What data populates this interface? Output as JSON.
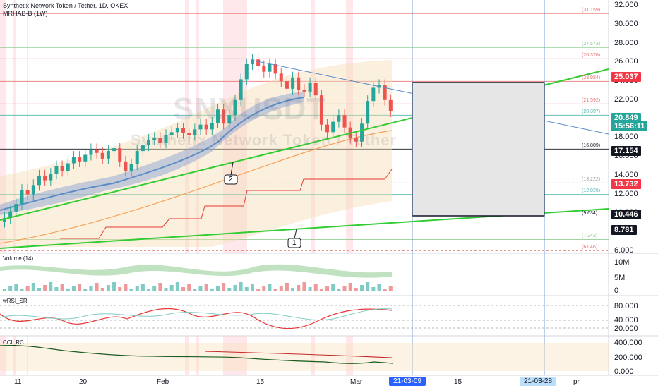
{
  "header": {
    "title": "Synthetix Network Token / Tether, 1D, OKEX",
    "indicator": "MRHAB-B (1W)"
  },
  "watermark": {
    "symbol": "SNXUSDT",
    "description": "Synthetix Network Token / Tether"
  },
  "price_axis": {
    "labels": [
      "32.000",
      "30.000",
      "28.000",
      "26.000",
      "24.000",
      "22.000",
      "20.000",
      "18.000",
      "16.000",
      "14.000",
      "12.000",
      "10.000",
      "8.000",
      "6.000"
    ],
    "badges": [
      {
        "value": "25.037",
        "color": "#f23645"
      },
      {
        "value": "20.849",
        "color": "#26a69a"
      },
      {
        "value": "15:56:11",
        "color": "#26a69a"
      },
      {
        "value": "17.154",
        "color": "#131722"
      },
      {
        "value": "13.732",
        "color": "#f23645"
      },
      {
        "value": "10.446",
        "color": "#131722"
      },
      {
        "value": "8.781",
        "color": "#131722"
      }
    ],
    "levels": [
      "(31.159)",
      "(27.572)",
      "(26.376)",
      "(23.984)",
      "(21.592)",
      "(20.397)",
      "(16.809)",
      "(13.222)",
      "(12.026)",
      "(9.634)",
      "(7.242)",
      "(6.046)"
    ]
  },
  "annotations": [
    "2",
    "1"
  ],
  "panes": {
    "volume": {
      "label": "Volume (14)",
      "axis": [
        "10M",
        "5M",
        "0"
      ]
    },
    "rsi": {
      "label": "wRSI_SR",
      "axis": [
        "80.000",
        "40.000",
        "20.000"
      ]
    },
    "cci": {
      "label": "CCI_RC",
      "axis": [
        "400.000",
        "200.000",
        "0.000"
      ]
    }
  },
  "time_axis": {
    "labels": [
      "11",
      "20",
      "Feb",
      "15",
      "Mar",
      "15",
      "pr"
    ],
    "badges": [
      "21-03-09",
      "21-03-28"
    ]
  },
  "colors": {
    "up": "#26a69a",
    "down": "#ef5350",
    "accent": "#2962ff",
    "trend": "#00c853"
  }
}
